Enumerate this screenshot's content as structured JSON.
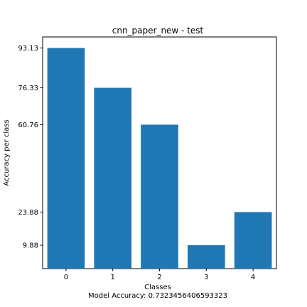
{
  "chart_data": {
    "type": "bar",
    "title": "cnn_paper_new - test",
    "xlabel": "Classes",
    "subcaption": "Model Accuracy: 0.7323456406593323",
    "ylabel": "Accuracy per class",
    "categories": [
      "0",
      "1",
      "2",
      "3",
      "4"
    ],
    "values": [
      93.13,
      76.33,
      60.76,
      9.88,
      23.88
    ],
    "ytick_labels": [
      "9.88",
      "23.88",
      "60.76",
      "76.33",
      "93.13"
    ],
    "ytick_values": [
      9.88,
      23.88,
      60.76,
      76.33,
      93.13
    ],
    "ylim": [
      0,
      97.79
    ],
    "bar_color": "#1f77b4",
    "grid": false
  }
}
